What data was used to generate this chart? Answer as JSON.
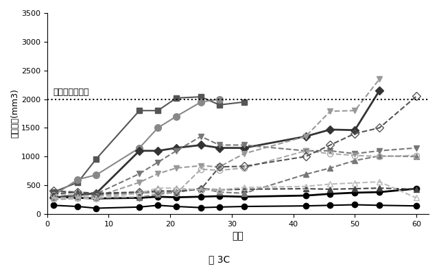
{
  "title": "図 3C",
  "xlabel": "日数",
  "ylabel": "腫瘍体積(mm3)",
  "endpoint_label": "エンドポイント",
  "endpoint_y": 2000,
  "ylim": [
    0,
    3500
  ],
  "xlim": [
    0,
    62
  ],
  "yticks": [
    0,
    500,
    1000,
    1500,
    2000,
    2500,
    3000,
    3500
  ],
  "xticks": [
    0,
    10,
    20,
    30,
    40,
    50,
    60
  ],
  "series": [
    {
      "x": [
        1,
        5,
        8,
        15,
        18,
        21,
        25,
        28,
        32,
        42,
        46,
        50,
        54,
        60
      ],
      "y": [
        150,
        130,
        100,
        120,
        150,
        130,
        110,
        120,
        130,
        140,
        150,
        160,
        150,
        140
      ],
      "color": "#000000",
      "marker": "o",
      "markersize": 6,
      "linestyle": "-",
      "linewidth": 1.5,
      "filled": true
    },
    {
      "x": [
        1,
        5,
        8,
        15,
        18,
        21,
        25,
        28,
        32,
        42,
        46,
        50,
        54,
        60
      ],
      "y": [
        300,
        280,
        270,
        280,
        300,
        290,
        300,
        310,
        300,
        320,
        350,
        370,
        380,
        440
      ],
      "color": "#000000",
      "marker": "o",
      "markersize": 6,
      "linestyle": "-",
      "linewidth": 2.0,
      "filled": true
    },
    {
      "x": [
        1,
        5,
        8,
        15,
        18,
        21,
        25,
        28,
        32,
        42,
        46,
        50,
        54,
        60
      ],
      "y": [
        380,
        550,
        960,
        1800,
        1800,
        2020,
        2040,
        1900,
        1950,
        null,
        null,
        null,
        null,
        null
      ],
      "color": "#555555",
      "marker": "s",
      "markersize": 6,
      "linestyle": "-",
      "linewidth": 1.5,
      "filled": true
    },
    {
      "x": [
        1,
        5,
        8,
        15,
        18,
        21,
        25,
        28,
        32,
        42,
        46,
        50,
        54,
        60
      ],
      "y": [
        320,
        600,
        680,
        1150,
        1500,
        1700,
        1950,
        2000,
        null,
        null,
        null,
        null,
        null,
        null
      ],
      "color": "#888888",
      "marker": "o",
      "markersize": 7,
      "linestyle": "-",
      "linewidth": 1.5,
      "filled": true
    },
    {
      "x": [
        1,
        5,
        8,
        15,
        18,
        21,
        25,
        28,
        32,
        42,
        46,
        50,
        54,
        60
      ],
      "y": [
        280,
        330,
        360,
        1100,
        1100,
        1150,
        1200,
        1150,
        1150,
        1350,
        1470,
        1460,
        2150,
        null
      ],
      "color": "#333333",
      "marker": "D",
      "markersize": 6,
      "linestyle": "-",
      "linewidth": 2.0,
      "filled": true
    },
    {
      "x": [
        1,
        5,
        8,
        15,
        18,
        21,
        25,
        28,
        32,
        42,
        46,
        50,
        54,
        60
      ],
      "y": [
        270,
        300,
        350,
        700,
        900,
        1100,
        1350,
        1200,
        1200,
        1100,
        1100,
        1050,
        1100,
        1150
      ],
      "color": "#777777",
      "marker": "v",
      "markersize": 6,
      "linestyle": "--",
      "linewidth": 1.5,
      "filled": true
    },
    {
      "x": [
        1,
        5,
        8,
        15,
        18,
        21,
        25,
        28,
        32,
        42,
        46,
        50,
        54,
        60
      ],
      "y": [
        250,
        270,
        300,
        550,
        700,
        800,
        840,
        820,
        1050,
        1350,
        1790,
        1800,
        2350,
        null
      ],
      "color": "#999999",
      "marker": "v",
      "markersize": 6,
      "linestyle": "--",
      "linewidth": 1.5,
      "filled": true
    },
    {
      "x": [
        1,
        5,
        8,
        15,
        18,
        21,
        25,
        28,
        32,
        42,
        46,
        50,
        54,
        60
      ],
      "y": [
        350,
        380,
        360,
        380,
        370,
        380,
        440,
        420,
        430,
        440,
        430,
        440,
        450,
        430
      ],
      "color": "#444444",
      "marker": "^",
      "markersize": 6,
      "linestyle": "--",
      "linewidth": 1.5,
      "filled": true
    },
    {
      "x": [
        1,
        5,
        8,
        15,
        18,
        21,
        25,
        28,
        32,
        42,
        46,
        50,
        54,
        60
      ],
      "y": [
        280,
        290,
        280,
        290,
        340,
        380,
        450,
        380,
        360,
        690,
        800,
        930,
        1010,
        1000
      ],
      "color": "#777777",
      "marker": "^",
      "markersize": 6,
      "linestyle": "--",
      "linewidth": 1.5,
      "filled": true
    },
    {
      "x": [
        1,
        5,
        8,
        15,
        18,
        21,
        25,
        28,
        32,
        42,
        46,
        50,
        54,
        60
      ],
      "y": [
        330,
        330,
        310,
        360,
        370,
        360,
        780,
        760,
        800,
        1100,
        1050,
        1020,
        1000,
        1020
      ],
      "color": "#aaaaaa",
      "marker": "o",
      "markersize": 6,
      "linestyle": "--",
      "linewidth": 1.5,
      "filled": false
    },
    {
      "x": [
        1,
        5,
        8,
        15,
        18,
        21,
        25,
        28,
        32,
        42,
        46,
        50,
        54,
        60
      ],
      "y": [
        400,
        380,
        340,
        380,
        400,
        400,
        430,
        820,
        830,
        1000,
        1200,
        1400,
        1500,
        2050
      ],
      "color": "#555555",
      "marker": "D",
      "markersize": 6,
      "linestyle": "--",
      "linewidth": 1.5,
      "filled": false
    },
    {
      "x": [
        1,
        5,
        8,
        15,
        18,
        21,
        25,
        28,
        32,
        42,
        46,
        50,
        54,
        60
      ],
      "y": [
        270,
        280,
        270,
        360,
        450,
        450,
        420,
        420,
        460,
        480,
        520,
        540,
        560,
        280
      ],
      "color": "#bbbbbb",
      "marker": "^",
      "markersize": 6,
      "linestyle": "--",
      "linewidth": 1.5,
      "filled": false
    }
  ],
  "background_color": "#ffffff",
  "fig_label": "図 3C"
}
